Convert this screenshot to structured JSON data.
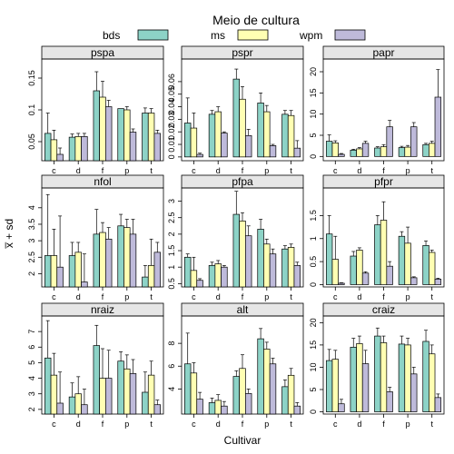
{
  "title": "Meio de cultura",
  "xlabel": "Cultivar",
  "ylabel": "x̅ + sd",
  "legend": [
    {
      "name": "bds",
      "color": "#8DD3C7"
    },
    {
      "name": "ms",
      "color": "#FFFFB3"
    },
    {
      "name": "wpm",
      "color": "#BEBADA"
    }
  ],
  "strip_color": "#E6E6E6",
  "chart_data": [
    {
      "panel": "pspa",
      "type": "bar",
      "categories": [
        "c",
        "d",
        "f",
        "p",
        "t"
      ],
      "yticks": [
        0.05,
        0.1,
        0.15
      ],
      "ylim": [
        0.02,
        0.18
      ],
      "series": [
        {
          "name": "bds",
          "values": [
            0.063,
            0.057,
            0.13,
            0.102,
            0.095
          ],
          "sd": [
            0.032,
            0.005,
            0.03,
            0.0,
            0.008
          ]
        },
        {
          "name": "ms",
          "values": [
            0.053,
            0.058,
            0.12,
            0.1,
            0.095
          ],
          "sd": [
            0.015,
            0.005,
            0.025,
            0.005,
            0.007
          ]
        },
        {
          "name": "wpm",
          "values": [
            0.03,
            0.058,
            0.105,
            0.065,
            0.063
          ],
          "sd": [
            0.01,
            0.005,
            0.01,
            0.005,
            0.005
          ]
        }
      ]
    },
    {
      "panel": "pspr",
      "type": "bar",
      "categories": [
        "c",
        "d",
        "f",
        "p",
        "t"
      ],
      "yticks": [
        0.0,
        0.01,
        0.02,
        0.03,
        0.04,
        0.05,
        0.06
      ],
      "ylim": [
        -0.003,
        0.078
      ],
      "series": [
        {
          "name": "bds",
          "values": [
            0.027,
            0.034,
            0.062,
            0.043,
            0.034
          ],
          "sd": [
            0.02,
            0.003,
            0.008,
            0.008,
            0.003
          ]
        },
        {
          "name": "ms",
          "values": [
            0.023,
            0.036,
            0.046,
            0.036,
            0.033
          ],
          "sd": [
            0.012,
            0.004,
            0.01,
            0.005,
            0.004
          ]
        },
        {
          "name": "wpm",
          "values": [
            0.002,
            0.019,
            0.017,
            0.009,
            0.007
          ],
          "sd": [
            0.001,
            0.001,
            0.005,
            0.001,
            0.006
          ]
        }
      ]
    },
    {
      "panel": "papr",
      "type": "bar",
      "categories": [
        "c",
        "d",
        "f",
        "p",
        "t"
      ],
      "yticks": [
        0,
        5,
        10,
        15,
        20
      ],
      "ylim": [
        -1,
        23
      ],
      "series": [
        {
          "name": "bds",
          "values": [
            3.6,
            1.5,
            2.0,
            2.1,
            2.8
          ],
          "sd": [
            1.5,
            0.2,
            0.3,
            0.3,
            0.3
          ]
        },
        {
          "name": "ms",
          "values": [
            3.2,
            1.8,
            2.3,
            2.2,
            3.1
          ],
          "sd": [
            0.5,
            0.3,
            0.5,
            0.4,
            0.5
          ]
        },
        {
          "name": "wpm",
          "values": [
            0.5,
            3.1,
            7.0,
            7.0,
            14.0
          ],
          "sd": [
            0.2,
            0.5,
            1.5,
            1.0,
            6.5
          ]
        }
      ]
    },
    {
      "panel": "nfol",
      "type": "bar",
      "categories": [
        "c",
        "d",
        "f",
        "p",
        "t"
      ],
      "yticks": [
        2.0,
        2.5,
        3.0,
        3.5,
        4.0
      ],
      "ylim": [
        1.6,
        4.6
      ],
      "series": [
        {
          "name": "bds",
          "values": [
            2.55,
            2.55,
            3.2,
            3.45,
            1.9
          ],
          "sd": [
            1.85,
            0.4,
            0.75,
            0.35,
            0.35
          ]
        },
        {
          "name": "ms",
          "values": [
            2.55,
            2.65,
            3.25,
            3.4,
            2.25
          ],
          "sd": [
            0.8,
            0.3,
            0.3,
            0.25,
            0.8
          ]
        },
        {
          "name": "wpm",
          "values": [
            2.2,
            1.75,
            3.05,
            3.2,
            2.65
          ],
          "sd": [
            1.55,
            0.85,
            0.35,
            0.45,
            0.3
          ]
        }
      ]
    },
    {
      "panel": "pfpa",
      "type": "bar",
      "categories": [
        "c",
        "d",
        "f",
        "p",
        "t"
      ],
      "yticks": [
        0.5,
        1.0,
        1.5,
        2.0,
        2.5,
        3.0
      ],
      "ylim": [
        0.4,
        3.4
      ],
      "series": [
        {
          "name": "bds",
          "values": [
            1.3,
            1.05,
            2.6,
            2.15,
            1.55
          ],
          "sd": [
            0.1,
            0.1,
            0.7,
            0.3,
            0.1
          ]
        },
        {
          "name": "ms",
          "values": [
            0.9,
            1.1,
            2.4,
            1.7,
            1.6
          ],
          "sd": [
            0.4,
            0.1,
            0.25,
            0.15,
            0.1
          ]
        },
        {
          "name": "wpm",
          "values": [
            0.6,
            1.0,
            1.95,
            1.4,
            1.05
          ],
          "sd": [
            0.05,
            0.05,
            0.3,
            0.15,
            0.1
          ]
        }
      ]
    },
    {
      "panel": "pfpr",
      "type": "bar",
      "categories": [
        "c",
        "d",
        "f",
        "p",
        "t"
      ],
      "yticks": [
        0.0,
        0.5,
        1.0,
        1.5
      ],
      "ylim": [
        -0.05,
        2.1
      ],
      "series": [
        {
          "name": "bds",
          "values": [
            1.1,
            0.62,
            1.3,
            1.05,
            0.85
          ],
          "sd": [
            0.4,
            0.1,
            0.2,
            0.1,
            0.1
          ]
        },
        {
          "name": "ms",
          "values": [
            0.55,
            0.75,
            1.4,
            0.9,
            0.7
          ],
          "sd": [
            0.5,
            0.05,
            0.4,
            0.35,
            0.05
          ]
        },
        {
          "name": "wpm",
          "values": [
            0.03,
            0.25,
            0.4,
            0.15,
            0.12
          ],
          "sd": [
            0.01,
            0.03,
            0.1,
            0.02,
            0.02
          ]
        }
      ]
    },
    {
      "panel": "nraiz",
      "type": "bar",
      "categories": [
        "c",
        "d",
        "f",
        "p",
        "t"
      ],
      "yticks": [
        2,
        3,
        4,
        5,
        6,
        7
      ],
      "ylim": [
        1.7,
        8.0
      ],
      "series": [
        {
          "name": "bds",
          "values": [
            5.3,
            2.8,
            6.1,
            5.1,
            3.1
          ],
          "sd": [
            2.4,
            0.9,
            1.3,
            0.6,
            1.3
          ]
        },
        {
          "name": "ms",
          "values": [
            4.2,
            3.0,
            4.0,
            4.6,
            4.2
          ],
          "sd": [
            1.4,
            1.1,
            1.9,
            0.9,
            0.9
          ]
        },
        {
          "name": "wpm",
          "values": [
            2.4,
            2.3,
            4.0,
            4.3,
            2.3
          ],
          "sd": [
            2.0,
            1.0,
            1.8,
            0.9,
            0.3
          ]
        }
      ]
    },
    {
      "panel": "alt",
      "type": "bar",
      "categories": [
        "c",
        "d",
        "f",
        "p",
        "t"
      ],
      "yticks": [
        4,
        6,
        8
      ],
      "ylim": [
        1.8,
        10.4
      ],
      "series": [
        {
          "name": "bds",
          "values": [
            6.2,
            2.8,
            5.1,
            8.4,
            4.2
          ],
          "sd": [
            2.7,
            0.4,
            0.5,
            0.9,
            0.6
          ]
        },
        {
          "name": "ms",
          "values": [
            5.4,
            3.0,
            5.8,
            7.5,
            5.2
          ],
          "sd": [
            0.9,
            0.5,
            1.2,
            0.6,
            0.6
          ]
        },
        {
          "name": "wpm",
          "values": [
            3.1,
            2.5,
            3.6,
            6.2,
            2.5
          ],
          "sd": [
            0.6,
            0.4,
            0.4,
            0.5,
            0.3
          ]
        }
      ]
    },
    {
      "panel": "craiz",
      "type": "bar",
      "categories": [
        "c",
        "d",
        "f",
        "p",
        "t"
      ],
      "yticks": [
        0,
        5,
        10,
        15,
        20
      ],
      "ylim": [
        -0.5,
        21.5
      ],
      "series": [
        {
          "name": "bds",
          "values": [
            11.5,
            14.5,
            17.0,
            15.2,
            15.8
          ],
          "sd": [
            2.5,
            2.0,
            1.8,
            1.8,
            2.5
          ]
        },
        {
          "name": "ms",
          "values": [
            11.8,
            15.3,
            15.5,
            15.0,
            13.0
          ],
          "sd": [
            2.0,
            1.7,
            1.5,
            1.5,
            2.0
          ]
        },
        {
          "name": "wpm",
          "values": [
            1.8,
            10.8,
            4.5,
            8.5,
            3.2
          ],
          "sd": [
            1.0,
            3.0,
            1.0,
            1.5,
            0.8
          ]
        }
      ]
    }
  ]
}
